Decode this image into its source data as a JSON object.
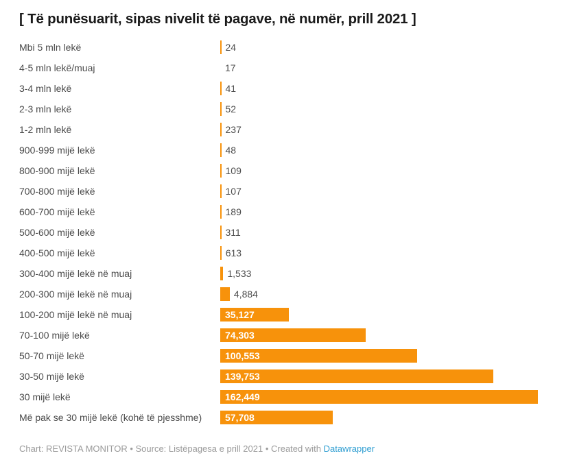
{
  "title": "[ Të punësuarit, sipas nivelit të pagave, në numër, prill 2021 ]",
  "chart_data": {
    "type": "bar",
    "orientation": "horizontal",
    "title": "[ Të punësuarit, sipas nivelit të pagave, në numër, prill 2021 ]",
    "xlabel": "",
    "ylabel": "",
    "xlim": [
      0,
      162449
    ],
    "grid": false,
    "legend": false,
    "bar_color": "#f7920b",
    "categories": [
      "Mbi 5 mln lekë",
      "4-5 mln lekë/muaj",
      "3-4 mln lekë",
      "2-3 mln lekë",
      "1-2 mln lekë",
      "900-999 mijë lekë",
      "800-900 mijë lekë",
      "700-800 mijë lekë",
      "600-700 mijë lekë",
      "500-600 mijë lekë",
      "400-500 mijë lekë",
      "300-400 mijë lekë në muaj",
      "200-300 mijë lekë në muaj",
      "100-200 mijë lekë në muaj",
      "70-100 mijë lekë",
      "50-70 mijë lekë",
      "30-50 mijë lekë",
      "30 mijë lekë",
      "Më pak se 30 mijë lekë (kohë të pjesshme)"
    ],
    "values": [
      24,
      17,
      41,
      52,
      237,
      48,
      109,
      107,
      189,
      311,
      613,
      1533,
      4884,
      35127,
      74303,
      100553,
      139753,
      162449,
      57708
    ],
    "value_labels": [
      "24",
      "17",
      "41",
      "52",
      "237",
      "48",
      "109",
      "107",
      "189",
      "311",
      "613",
      "1,533",
      "4,884",
      "35,127",
      "74,303",
      "100,553",
      "139,753",
      "162,449",
      "57,708"
    ]
  },
  "footer": {
    "prefix": "Chart: REVISTA MONITOR • Source: Listëpagesa e prill 2021 • Created with ",
    "link_label": "Datawrapper",
    "link_color": "#2d9dd1"
  }
}
